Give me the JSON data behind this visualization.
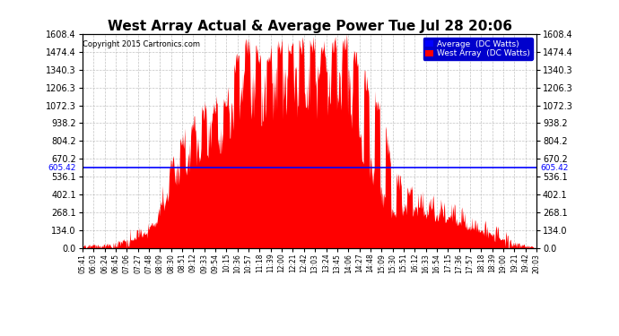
{
  "title": "West Array Actual & Average Power Tue Jul 28 20:06",
  "copyright": "Copyright 2015 Cartronics.com",
  "average_value": 605.42,
  "ymax": 1608.4,
  "ymin": 0.0,
  "yticks": [
    0.0,
    134.0,
    268.1,
    402.1,
    536.1,
    670.2,
    804.2,
    938.2,
    1072.3,
    1206.3,
    1340.3,
    1474.4,
    1608.4
  ],
  "avg_label": "Average  (DC Watts)",
  "west_label": "West Array  (DC Watts)",
  "bg_color": "#ffffff",
  "grid_color": "#aaaaaa",
  "avg_line_color": "#0000ff",
  "west_fill_color": "#ff0000",
  "title_fontsize": 11,
  "xtick_labels": [
    "05:41",
    "06:03",
    "06:24",
    "06:45",
    "07:06",
    "07:27",
    "07:48",
    "08:09",
    "08:30",
    "08:51",
    "09:12",
    "09:33",
    "09:54",
    "10:15",
    "10:36",
    "10:57",
    "11:18",
    "11:39",
    "12:00",
    "12:21",
    "12:42",
    "13:03",
    "13:24",
    "13:45",
    "14:06",
    "14:27",
    "14:48",
    "15:09",
    "15:30",
    "15:51",
    "16:12",
    "16:33",
    "16:54",
    "17:15",
    "17:36",
    "17:57",
    "18:18",
    "18:39",
    "19:00",
    "19:21",
    "19:42",
    "20:03"
  ],
  "base_envelope": [
    30,
    35,
    40,
    55,
    90,
    130,
    180,
    350,
    680,
    820,
    950,
    1050,
    1100,
    1150,
    1480,
    1540,
    1480,
    1500,
    1520,
    1510,
    1560,
    1540,
    1530,
    1550,
    1590,
    1380,
    1200,
    1050,
    580,
    490,
    420,
    380,
    350,
    300,
    280,
    220,
    180,
    150,
    100,
    60,
    30,
    10
  ],
  "base_floor": [
    20,
    25,
    30,
    40,
    70,
    100,
    150,
    280,
    580,
    720,
    850,
    950,
    980,
    1020,
    1300,
    1380,
    1300,
    1350,
    1380,
    1360,
    1420,
    1380,
    1380,
    1400,
    1420,
    900,
    700,
    450,
    300,
    350,
    330,
    300,
    280,
    250,
    230,
    180,
    150,
    120,
    80,
    40,
    20,
    5
  ]
}
